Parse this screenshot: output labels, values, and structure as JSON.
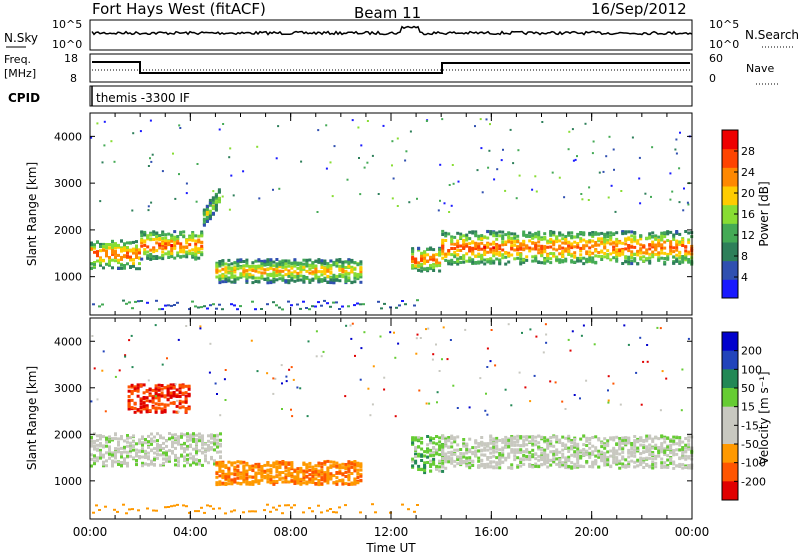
{
  "header": {
    "station": "Fort Hays West (fitACF)",
    "beam": "Beam 11",
    "date": "16/Sep/2012"
  },
  "noise_panel": {
    "left_label": "N.Sky",
    "right_label": "N.Search",
    "left_ticks": [
      "10^5",
      "10^0"
    ],
    "right_ticks": [
      "10^5",
      "10^0"
    ]
  },
  "freq_panel": {
    "left_label_1": "Freq.",
    "left_label_2": "[MHz]",
    "right_label": "Nave",
    "left_ticks": [
      "18",
      "8"
    ],
    "right_ticks": [
      "60",
      "0"
    ]
  },
  "cpid_panel": {
    "label": "CPID",
    "mode_text": "themis -3300 IF"
  },
  "colors": {
    "power": [
      "#1a1aff",
      "#3050b0",
      "#2e7f5a",
      "#44aa55",
      "#88dd33",
      "#ffcc00",
      "#ff8800",
      "#ff4400",
      "#ee0000"
    ],
    "velocity": [
      "#e00000",
      "#ff5500",
      "#ff9900",
      "#c8c8c0",
      "#c8c8c0",
      "#66cc33",
      "#228855",
      "#2244bb",
      "#0000cc"
    ]
  },
  "chart_data": [
    {
      "type": "heatmap",
      "name": "power",
      "ylabel": "Slant Range [km]",
      "xlabel": "",
      "x_range_hours": [
        0,
        24
      ],
      "ylim": [
        180,
        4500
      ],
      "yticks": [
        1000,
        2000,
        3000,
        4000
      ],
      "colorbar": {
        "label": "Power [dB]",
        "range": [
          0,
          32
        ],
        "ticks": [
          4,
          8,
          12,
          16,
          20,
          24,
          28
        ]
      },
      "echo_bands": [
        {
          "t_start": 0.0,
          "t_end": 2.0,
          "range_center": 1500,
          "range_width": 600,
          "power_db": 24
        },
        {
          "t_start": 2.0,
          "t_end": 4.5,
          "range_center": 1700,
          "range_width": 600,
          "power_db": 24
        },
        {
          "t_start": 4.5,
          "t_end": 5.2,
          "range_center": 2300,
          "range_width": 400,
          "power_db": 16
        },
        {
          "t_start": 5.0,
          "t_end": 10.8,
          "range_center": 1150,
          "range_width": 500,
          "power_db": 20
        },
        {
          "t_start": 12.8,
          "t_end": 13.9,
          "range_center": 1400,
          "range_width": 500,
          "power_db": 24
        },
        {
          "t_start": 14.0,
          "t_end": 24.0,
          "range_center": 1650,
          "range_width": 700,
          "power_db": 24
        }
      ]
    },
    {
      "type": "heatmap",
      "name": "velocity",
      "ylabel": "Slant Range [km]",
      "xlabel": "Time UT",
      "x_range_hours": [
        0,
        24
      ],
      "ylim": [
        180,
        4500
      ],
      "yticks": [
        1000,
        2000,
        3000,
        4000
      ],
      "xticks": [
        "00:00",
        "04:00",
        "08:00",
        "12:00",
        "16:00",
        "20:00",
        "00:00"
      ],
      "colorbar": {
        "label": "Velocity [m s⁻¹]",
        "ticks": [
          "200",
          "100",
          "50",
          "15",
          "-15",
          "-50",
          "-100",
          "-200"
        ]
      },
      "echo_bands": [
        {
          "t_start": 0.0,
          "t_end": 5.2,
          "range_center": 1700,
          "range_width": 700,
          "velocity": 0
        },
        {
          "t_start": 1.5,
          "t_end": 4.0,
          "range_center": 2800,
          "range_width": 600,
          "velocity": -150
        },
        {
          "t_start": 5.0,
          "t_end": 10.8,
          "range_center": 1200,
          "range_width": 500,
          "velocity": -60
        },
        {
          "t_start": 12.8,
          "t_end": 14.0,
          "range_center": 1600,
          "range_width": 800,
          "velocity": 30
        },
        {
          "t_start": 14.0,
          "t_end": 24.0,
          "range_center": 1650,
          "range_width": 700,
          "velocity": 0
        }
      ]
    }
  ]
}
